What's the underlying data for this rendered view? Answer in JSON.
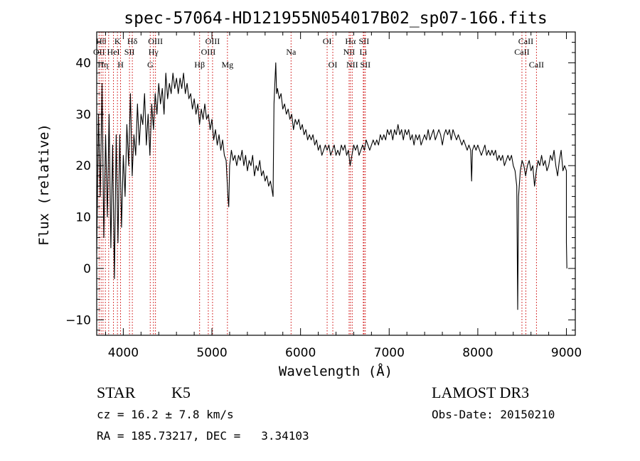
{
  "chart_data": {
    "type": "line",
    "title": "spec-57064-HD121955N054017B02_sp07-166.fits",
    "xlabel": "Wavelength (Å)",
    "ylabel": "Flux (relative)",
    "xlim": [
      3700,
      9100
    ],
    "ylim": [
      -13,
      46
    ],
    "x_ticks": [
      4000,
      5000,
      6000,
      7000,
      8000,
      9000
    ],
    "y_ticks": [
      -10,
      0,
      10,
      20,
      30,
      40
    ],
    "x_tick_labels": [
      "4000",
      "5000",
      "6000",
      "7000",
      "8000",
      "9000"
    ],
    "y_tick_labels": [
      "−10",
      "0",
      "10",
      "20",
      "30",
      "40"
    ],
    "series": [
      {
        "name": "flux",
        "points": [
          [
            3700,
            3
          ],
          [
            3720,
            30
          ],
          [
            3740,
            14
          ],
          [
            3760,
            36
          ],
          [
            3780,
            6
          ],
          [
            3800,
            26
          ],
          [
            3820,
            10
          ],
          [
            3840,
            30
          ],
          [
            3860,
            4
          ],
          [
            3880,
            24
          ],
          [
            3900,
            -2
          ],
          [
            3920,
            26
          ],
          [
            3940,
            5
          ],
          [
            3960,
            26
          ],
          [
            3980,
            8
          ],
          [
            4000,
            22
          ],
          [
            4020,
            14
          ],
          [
            4040,
            28
          ],
          [
            4060,
            20
          ],
          [
            4080,
            34
          ],
          [
            4100,
            18
          ],
          [
            4120,
            26
          ],
          [
            4140,
            22
          ],
          [
            4160,
            32
          ],
          [
            4180,
            24
          ],
          [
            4200,
            30
          ],
          [
            4220,
            28
          ],
          [
            4240,
            34
          ],
          [
            4260,
            24
          ],
          [
            4280,
            30
          ],
          [
            4300,
            22
          ],
          [
            4320,
            32
          ],
          [
            4340,
            27
          ],
          [
            4360,
            34
          ],
          [
            4380,
            30
          ],
          [
            4400,
            36
          ],
          [
            4420,
            32
          ],
          [
            4440,
            35
          ],
          [
            4460,
            30
          ],
          [
            4480,
            38
          ],
          [
            4500,
            33
          ],
          [
            4520,
            36
          ],
          [
            4540,
            34
          ],
          [
            4560,
            38
          ],
          [
            4580,
            35
          ],
          [
            4600,
            37
          ],
          [
            4620,
            34
          ],
          [
            4640,
            37
          ],
          [
            4660,
            35
          ],
          [
            4680,
            38
          ],
          [
            4700,
            34
          ],
          [
            4720,
            36
          ],
          [
            4740,
            33
          ],
          [
            4760,
            34
          ],
          [
            4780,
            31
          ],
          [
            4800,
            33
          ],
          [
            4820,
            30
          ],
          [
            4840,
            32
          ],
          [
            4860,
            28
          ],
          [
            4880,
            31
          ],
          [
            4900,
            29
          ],
          [
            4920,
            32
          ],
          [
            4940,
            29
          ],
          [
            4960,
            30
          ],
          [
            4980,
            27
          ],
          [
            5000,
            29
          ],
          [
            5020,
            25
          ],
          [
            5040,
            27
          ],
          [
            5060,
            24
          ],
          [
            5080,
            26
          ],
          [
            5100,
            23
          ],
          [
            5120,
            25
          ],
          [
            5140,
            22
          ],
          [
            5160,
            21
          ],
          [
            5180,
            14
          ],
          [
            5190,
            12
          ],
          [
            5200,
            20
          ],
          [
            5220,
            23
          ],
          [
            5240,
            21
          ],
          [
            5260,
            22
          ],
          [
            5280,
            20
          ],
          [
            5300,
            22
          ],
          [
            5320,
            21
          ],
          [
            5340,
            23
          ],
          [
            5360,
            20
          ],
          [
            5380,
            22
          ],
          [
            5400,
            19
          ],
          [
            5420,
            21
          ],
          [
            5440,
            20
          ],
          [
            5460,
            22
          ],
          [
            5480,
            18
          ],
          [
            5500,
            20
          ],
          [
            5520,
            19
          ],
          [
            5540,
            21
          ],
          [
            5560,
            18
          ],
          [
            5580,
            19
          ],
          [
            5600,
            17
          ],
          [
            5620,
            18
          ],
          [
            5640,
            16
          ],
          [
            5660,
            17
          ],
          [
            5680,
            15
          ],
          [
            5690,
            14
          ],
          [
            5700,
            32
          ],
          [
            5710,
            36
          ],
          [
            5720,
            40
          ],
          [
            5730,
            34
          ],
          [
            5740,
            35
          ],
          [
            5760,
            33
          ],
          [
            5780,
            34
          ],
          [
            5800,
            31
          ],
          [
            5820,
            32
          ],
          [
            5840,
            30
          ],
          [
            5860,
            31
          ],
          [
            5880,
            29
          ],
          [
            5900,
            30
          ],
          [
            5920,
            27
          ],
          [
            5940,
            29
          ],
          [
            5960,
            28
          ],
          [
            5980,
            29
          ],
          [
            6000,
            27
          ],
          [
            6020,
            28
          ],
          [
            6040,
            26
          ],
          [
            6060,
            27
          ],
          [
            6080,
            25
          ],
          [
            6100,
            26
          ],
          [
            6120,
            25
          ],
          [
            6140,
            26
          ],
          [
            6160,
            24
          ],
          [
            6180,
            25
          ],
          [
            6200,
            23
          ],
          [
            6220,
            24
          ],
          [
            6240,
            22
          ],
          [
            6260,
            23
          ],
          [
            6280,
            24
          ],
          [
            6300,
            23
          ],
          [
            6320,
            24
          ],
          [
            6340,
            22
          ],
          [
            6360,
            23
          ],
          [
            6380,
            24
          ],
          [
            6400,
            22
          ],
          [
            6420,
            23
          ],
          [
            6440,
            22
          ],
          [
            6460,
            24
          ],
          [
            6480,
            23
          ],
          [
            6500,
            24
          ],
          [
            6520,
            22
          ],
          [
            6540,
            23
          ],
          [
            6560,
            20
          ],
          [
            6580,
            22
          ],
          [
            6600,
            24
          ],
          [
            6620,
            23
          ],
          [
            6640,
            24
          ],
          [
            6660,
            22
          ],
          [
            6680,
            23
          ],
          [
            6700,
            24
          ],
          [
            6720,
            23
          ],
          [
            6740,
            25
          ],
          [
            6760,
            24
          ],
          [
            6780,
            23
          ],
          [
            6800,
            24
          ],
          [
            6820,
            25
          ],
          [
            6840,
            24
          ],
          [
            6860,
            25
          ],
          [
            6880,
            24
          ],
          [
            6900,
            26
          ],
          [
            6920,
            25
          ],
          [
            6940,
            26
          ],
          [
            6960,
            25
          ],
          [
            6980,
            27
          ],
          [
            7000,
            26
          ],
          [
            7020,
            27
          ],
          [
            7040,
            25
          ],
          [
            7060,
            27
          ],
          [
            7080,
            26
          ],
          [
            7100,
            28
          ],
          [
            7120,
            26
          ],
          [
            7140,
            27
          ],
          [
            7160,
            25
          ],
          [
            7180,
            27
          ],
          [
            7200,
            26
          ],
          [
            7220,
            27
          ],
          [
            7240,
            25
          ],
          [
            7260,
            26
          ],
          [
            7280,
            24
          ],
          [
            7300,
            26
          ],
          [
            7320,
            25
          ],
          [
            7340,
            26
          ],
          [
            7360,
            24
          ],
          [
            7380,
            25
          ],
          [
            7400,
            26
          ],
          [
            7420,
            25
          ],
          [
            7440,
            27
          ],
          [
            7460,
            25
          ],
          [
            7480,
            26
          ],
          [
            7500,
            27
          ],
          [
            7520,
            25
          ],
          [
            7540,
            26
          ],
          [
            7560,
            27
          ],
          [
            7580,
            26
          ],
          [
            7600,
            24
          ],
          [
            7620,
            26
          ],
          [
            7640,
            27
          ],
          [
            7660,
            26
          ],
          [
            7680,
            27
          ],
          [
            7700,
            25
          ],
          [
            7720,
            27
          ],
          [
            7740,
            26
          ],
          [
            7760,
            25
          ],
          [
            7780,
            26
          ],
          [
            7800,
            25
          ],
          [
            7820,
            24
          ],
          [
            7840,
            25
          ],
          [
            7860,
            24
          ],
          [
            7880,
            23
          ],
          [
            7900,
            24
          ],
          [
            7920,
            23
          ],
          [
            7930,
            17
          ],
          [
            7940,
            23
          ],
          [
            7960,
            24
          ],
          [
            7980,
            23
          ],
          [
            8000,
            24
          ],
          [
            8020,
            23
          ],
          [
            8040,
            22
          ],
          [
            8060,
            23
          ],
          [
            8080,
            24
          ],
          [
            8100,
            22
          ],
          [
            8120,
            23
          ],
          [
            8140,
            22
          ],
          [
            8160,
            23
          ],
          [
            8180,
            22
          ],
          [
            8200,
            23
          ],
          [
            8220,
            21
          ],
          [
            8240,
            22
          ],
          [
            8260,
            21
          ],
          [
            8280,
            22
          ],
          [
            8300,
            20
          ],
          [
            8320,
            21
          ],
          [
            8340,
            22
          ],
          [
            8360,
            21
          ],
          [
            8380,
            22
          ],
          [
            8400,
            20
          ],
          [
            8420,
            19
          ],
          [
            8440,
            16
          ],
          [
            8450,
            -8
          ],
          [
            8460,
            14
          ],
          [
            8480,
            19
          ],
          [
            8500,
            21
          ],
          [
            8520,
            20
          ],
          [
            8540,
            18
          ],
          [
            8560,
            20
          ],
          [
            8580,
            21
          ],
          [
            8600,
            19
          ],
          [
            8620,
            20
          ],
          [
            8640,
            16
          ],
          [
            8660,
            19
          ],
          [
            8680,
            21
          ],
          [
            8700,
            20
          ],
          [
            8720,
            22
          ],
          [
            8740,
            20
          ],
          [
            8760,
            21
          ],
          [
            8780,
            19
          ],
          [
            8800,
            20
          ],
          [
            8820,
            22
          ],
          [
            8840,
            21
          ],
          [
            8860,
            23
          ],
          [
            8880,
            20
          ],
          [
            8900,
            18
          ],
          [
            8920,
            21
          ],
          [
            8940,
            23
          ],
          [
            8960,
            19
          ],
          [
            8980,
            20
          ],
          [
            9000,
            19
          ],
          [
            9000,
            5
          ],
          [
            9005,
            0
          ]
        ]
      }
    ],
    "lines": [
      {
        "x": 3727,
        "label": "OII",
        "row": 2
      },
      {
        "x": 3750,
        "label": "Hθ",
        "row": 1
      },
      {
        "x": 3771,
        "label": "Hη",
        "row": 3
      },
      {
        "x": 3798,
        "label": "",
        "row": 0
      },
      {
        "x": 3835,
        "label": "",
        "row": 0
      },
      {
        "x": 3889,
        "label": "HeI",
        "row": 2
      },
      {
        "x": 3934,
        "label": "K",
        "row": 1
      },
      {
        "x": 3969,
        "label": "H",
        "row": 3
      },
      {
        "x": 4070,
        "label": "SII",
        "row": 2
      },
      {
        "x": 4102,
        "label": "Hδ",
        "row": 1
      },
      {
        "x": 4304,
        "label": "G",
        "row": 3
      },
      {
        "x": 4340,
        "label": "Hγ",
        "row": 2
      },
      {
        "x": 4363,
        "label": "OIII",
        "row": 1
      },
      {
        "x": 4861,
        "label": "Hβ",
        "row": 3
      },
      {
        "x": 4959,
        "label": "OIII",
        "row": 2
      },
      {
        "x": 5007,
        "label": "OIII",
        "row": 1
      },
      {
        "x": 5175,
        "label": "Mg",
        "row": 3
      },
      {
        "x": 5893,
        "label": "Na",
        "row": 2
      },
      {
        "x": 6300,
        "label": "OI",
        "row": 1
      },
      {
        "x": 6364,
        "label": "OI",
        "row": 3
      },
      {
        "x": 6548,
        "label": "NII",
        "row": 2
      },
      {
        "x": 6563,
        "label": "Hα",
        "row": 1
      },
      {
        "x": 6583,
        "label": "NII",
        "row": 3
      },
      {
        "x": 6708,
        "label": "Li",
        "row": 2
      },
      {
        "x": 6716,
        "label": "SII",
        "row": 1
      },
      {
        "x": 6731,
        "label": "SII",
        "row": 3
      },
      {
        "x": 8498,
        "label": "CaII",
        "row": 2
      },
      {
        "x": 8542,
        "label": "CaII",
        "row": 1
      },
      {
        "x": 8662,
        "label": "CaII",
        "row": 3
      }
    ],
    "colors": {
      "spectrum": "#000000",
      "lines": "#cc0000",
      "axis": "#000000"
    }
  },
  "info": {
    "object_class": "STAR",
    "subclass": "K5",
    "survey": "LAMOST DR3",
    "cz": "cz = 16.2 ± 7.8 km/s",
    "obs_date": "Obs-Date: 20150210",
    "coords": "RA = 185.73217, DEC =   3.34103"
  }
}
